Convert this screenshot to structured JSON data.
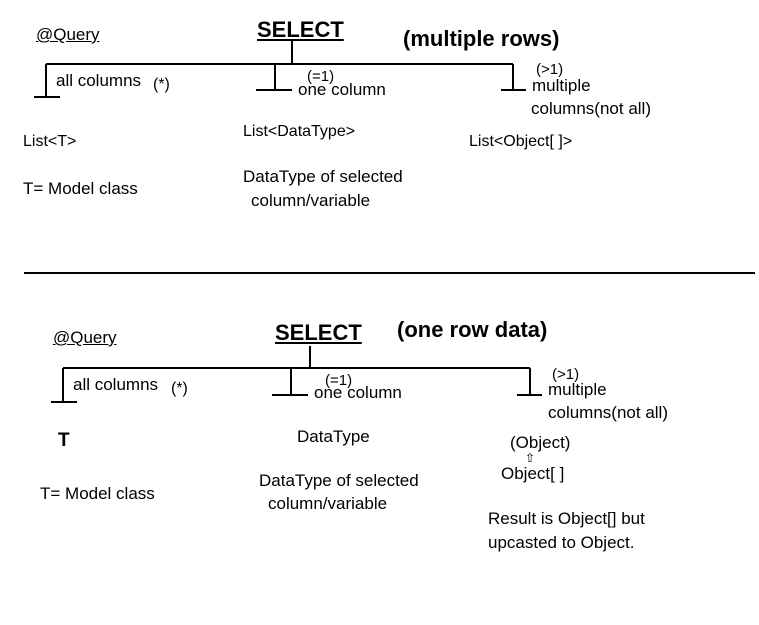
{
  "top": {
    "query": "@Query",
    "select": "SELECT",
    "mode": "(multiple rows)",
    "all_columns": "all columns",
    "star": "(*)",
    "eq1": "(=1)",
    "one_column": "one column",
    "gt1": "(>1)",
    "multiple": "multiple",
    "columns_not_all": "columns(not all)",
    "list_t": "List<T>",
    "t_model": "T= Model class",
    "list_datatype": "List<DataType>",
    "datatype_line1": "DataType of selected",
    "datatype_line2": "column/variable",
    "list_object": "List<Object[ ]>"
  },
  "bottom": {
    "query": "@Query",
    "select": "SELECT",
    "mode": "(one row data)",
    "all_columns": "all columns",
    "star": "(*)",
    "eq1": "(=1)",
    "one_column": "one column",
    "gt1": "(>1)",
    "multiple": "multiple",
    "columns_not_all": "columns(not all)",
    "t": "T",
    "t_model": "T= Model class",
    "datatype": "DataType",
    "datatype_line1": "DataType of selected",
    "datatype_line2": "column/variable",
    "object": "(Object)",
    "arrow": "⇧",
    "object_arr": "Object[ ]",
    "result_line1": "Result is Object[] but",
    "result_line2": "upcasted to Object."
  }
}
